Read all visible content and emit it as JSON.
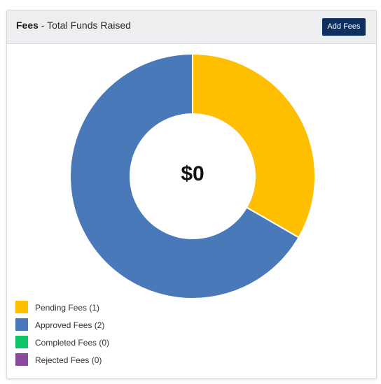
{
  "header": {
    "title_bold": "Fees",
    "title_rest": " - Total Funds Raised",
    "add_button_label": "Add Fees"
  },
  "chart": {
    "center_label": "$0",
    "segments": [
      {
        "name": "Pending Fees",
        "count": 1,
        "color": "#ffbe00"
      },
      {
        "name": "Approved Fees",
        "count": 2,
        "color": "#4a79ba"
      },
      {
        "name": "Completed Fees",
        "count": 0,
        "color": "#10c468"
      },
      {
        "name": "Rejected Fees",
        "count": 0,
        "color": "#8a4a9c"
      }
    ]
  },
  "legend": [
    {
      "label": "Pending Fees (1)",
      "color": "#ffbe00"
    },
    {
      "label": "Approved Fees (2)",
      "color": "#4a79ba"
    },
    {
      "label": "Completed Fees (0)",
      "color": "#10c468"
    },
    {
      "label": "Rejected Fees (0)",
      "color": "#8a4a9c"
    }
  ]
}
